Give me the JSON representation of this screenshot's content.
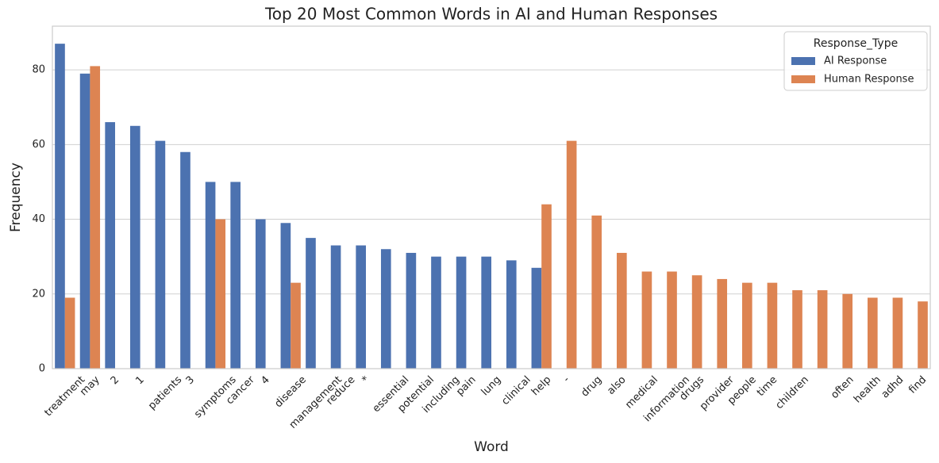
{
  "chart_data": {
    "type": "bar",
    "title": "Top 20 Most Common Words in AI and Human Responses",
    "x_label": "Word",
    "y_label": "Frequency",
    "categories": [
      "treatment",
      "may",
      "2",
      "1",
      "patients",
      "3",
      "symptoms",
      "cancer",
      "4",
      "disease",
      "management",
      "reduce",
      "*",
      "essential",
      "potential",
      "including",
      "pain",
      "lung",
      "clinical",
      "help",
      "-",
      "drug",
      "also",
      "medical",
      "information",
      "drugs",
      "provider",
      "people",
      "time",
      "children",
      null,
      "often",
      "health",
      "adhd",
      "find"
    ],
    "series": [
      {
        "name": "AI Response",
        "color": "#4c72b0",
        "values": [
          87,
          79,
          66,
          65,
          61,
          58,
          50,
          50,
          40,
          39,
          35,
          33,
          33,
          32,
          31,
          30,
          30,
          30,
          29,
          27,
          null,
          null,
          null,
          null,
          null,
          null,
          null,
          null,
          null,
          null,
          null,
          null,
          null,
          null,
          null
        ]
      },
      {
        "name": "Human Response",
        "color": "#dd8452",
        "values": [
          19,
          81,
          null,
          null,
          null,
          null,
          40,
          null,
          null,
          23,
          null,
          null,
          null,
          null,
          null,
          null,
          null,
          null,
          null,
          44,
          61,
          41,
          31,
          26,
          26,
          25,
          24,
          23,
          23,
          21,
          21,
          20,
          19,
          19,
          18
        ]
      }
    ],
    "legend_title": "Response_Type",
    "legend_position": "upper right",
    "ylim": [
      0,
      91.7
    ],
    "yticks": [
      0,
      20,
      40,
      60,
      80
    ],
    "grid": true
  }
}
